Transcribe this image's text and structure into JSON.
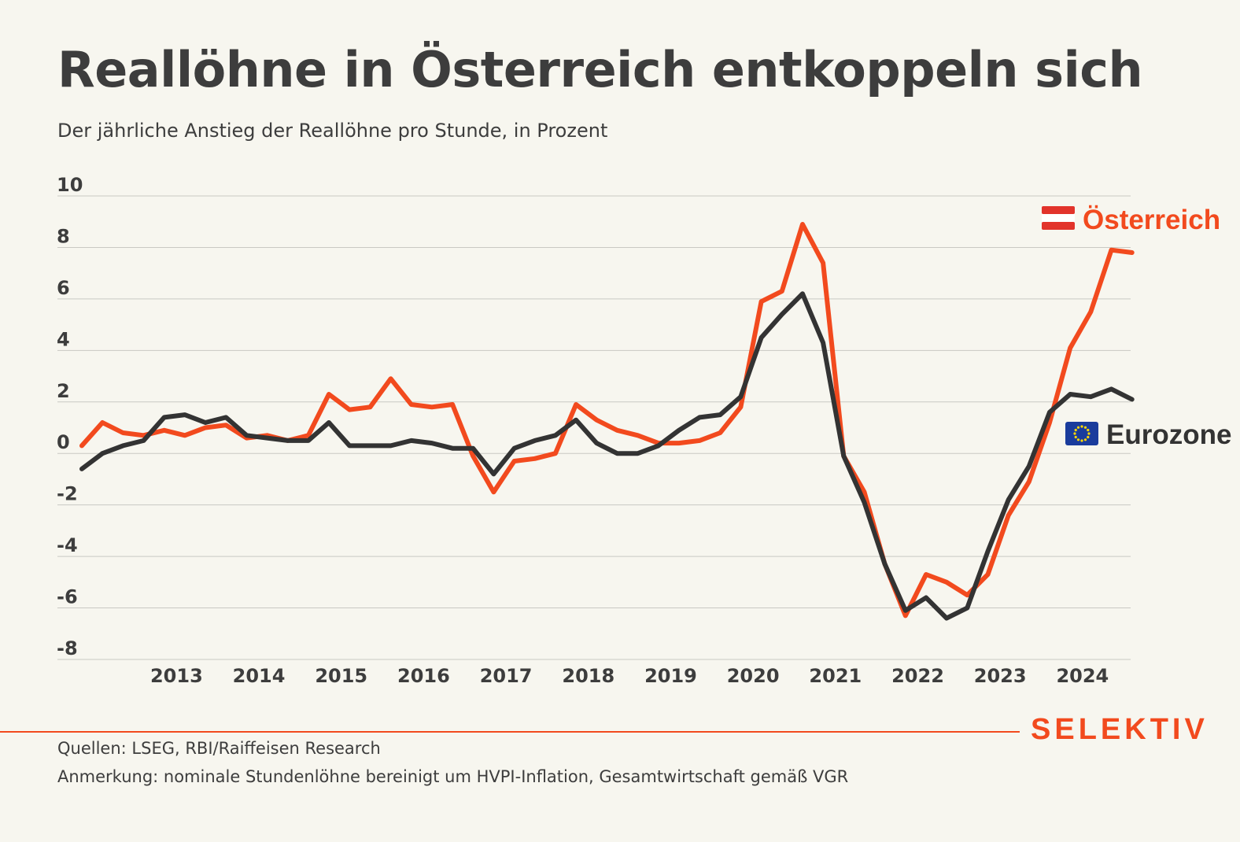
{
  "header": {
    "title": "Reallöhne in Österreich entkoppeln sich",
    "subtitle": "Der jährliche Anstieg der Reallöhne pro Stunde, in Prozent"
  },
  "footer": {
    "source": "Quellen: LSEG, RBI/Raiffeisen Research",
    "note": "Anmerkung: nominale Stundenlöhne bereinigt um HVPI-Inflation, Gesamtwirtschaft gemäß VGR",
    "brand": "SELEKTIV"
  },
  "chart_data": {
    "type": "line",
    "x_ticks": [
      "2013",
      "2014",
      "2015",
      "2016",
      "2017",
      "2018",
      "2019",
      "2020",
      "2021",
      "2022",
      "2023",
      "2024"
    ],
    "y_ticks": [
      "10",
      "8",
      "6",
      "4",
      "2",
      "0",
      "-2",
      "-4",
      "-6",
      "-8"
    ],
    "ylim": [
      -8,
      10
    ],
    "xlim": [
      "2012-Q2",
      "2024-Q4"
    ],
    "grid": true,
    "legend_placement": "labels at right end of lines",
    "x": [
      "2012-Q2",
      "2012-Q3",
      "2012-Q4",
      "2013-Q1",
      "2013-Q2",
      "2013-Q3",
      "2013-Q4",
      "2014-Q1",
      "2014-Q2",
      "2014-Q3",
      "2014-Q4",
      "2015-Q1",
      "2015-Q2",
      "2015-Q3",
      "2015-Q4",
      "2016-Q1",
      "2016-Q2",
      "2016-Q3",
      "2016-Q4",
      "2017-Q1",
      "2017-Q2",
      "2017-Q3",
      "2017-Q4",
      "2018-Q1",
      "2018-Q2",
      "2018-Q3",
      "2018-Q4",
      "2019-Q1",
      "2019-Q2",
      "2019-Q3",
      "2019-Q4",
      "2020-Q1",
      "2020-Q2",
      "2020-Q3",
      "2020-Q4",
      "2021-Q1",
      "2021-Q2",
      "2021-Q3",
      "2021-Q4",
      "2022-Q1",
      "2022-Q2",
      "2022-Q3",
      "2022-Q4",
      "2023-Q1",
      "2023-Q2",
      "2023-Q3",
      "2023-Q4",
      "2024-Q1",
      "2024-Q2",
      "2024-Q3",
      "2024-Q4",
      "2025-Q1"
    ],
    "series": [
      {
        "name": "Österreich",
        "color": "#f24a1e",
        "icon": "austria-flag-icon",
        "values": [
          0.3,
          1.2,
          0.8,
          0.7,
          0.9,
          0.7,
          1.0,
          1.1,
          0.6,
          0.7,
          0.5,
          0.7,
          2.3,
          1.7,
          1.8,
          2.9,
          1.9,
          1.8,
          1.9,
          -0.1,
          -1.5,
          -0.3,
          -0.2,
          0.0,
          1.9,
          1.3,
          0.9,
          0.7,
          0.4,
          0.4,
          0.5,
          0.8,
          1.8,
          5.9,
          6.3,
          8.9,
          7.4,
          -0.1,
          -1.5,
          -4.3,
          -6.3,
          -4.7,
          -5.0,
          -5.5,
          -4.7,
          -2.4,
          -1.1,
          1.2,
          4.1,
          5.5,
          7.9,
          7.8
        ]
      },
      {
        "name": "Eurozone",
        "color": "#333333",
        "icon": "eu-flag-icon",
        "values": [
          -0.6,
          0.0,
          0.3,
          0.5,
          1.4,
          1.5,
          1.2,
          1.4,
          0.7,
          0.6,
          0.5,
          0.5,
          1.2,
          0.3,
          0.3,
          0.3,
          0.5,
          0.4,
          0.2,
          0.2,
          -0.8,
          0.2,
          0.5,
          0.7,
          1.3,
          0.4,
          0.0,
          0.0,
          0.3,
          0.9,
          1.4,
          1.5,
          2.2,
          4.5,
          5.4,
          6.2,
          4.3,
          -0.1,
          -1.9,
          -4.3,
          -6.1,
          -5.6,
          -6.4,
          -6.0,
          -3.8,
          -1.8,
          -0.5,
          1.6,
          2.3,
          2.2,
          2.5,
          2.1
        ]
      }
    ]
  }
}
